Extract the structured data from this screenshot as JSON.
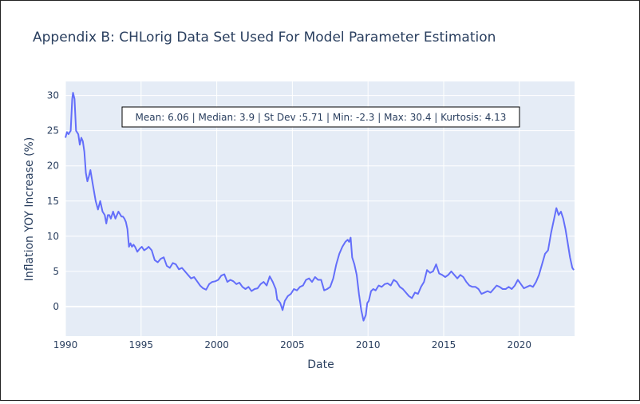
{
  "chart_data": {
    "type": "line",
    "title": "Appendix B: CHLorig Data Set Used For Model Parameter Estimation",
    "xlabel": "Date",
    "ylabel": "Inflation YOY Increase (%)",
    "xlim": [
      1990.0,
      2023.65
    ],
    "ylim": [
      -4.2,
      32.0
    ],
    "x_ticks": [
      1990,
      1995,
      2000,
      2005,
      2010,
      2015,
      2020
    ],
    "y_ticks": [
      0,
      5,
      10,
      15,
      20,
      25,
      30
    ],
    "grid": true,
    "line_color": "#636efa",
    "background_color": "#e5ecf6",
    "annotation": "Mean: 6.06 | Median: 3.9 | St Dev :5.71 | Min: -2.3 | Max: 30.4 | Kurtosis: 4.13",
    "series": [
      {
        "x": [
          1990.0,
          1990.1,
          1990.2,
          1990.35,
          1990.45,
          1990.5,
          1990.6,
          1990.7,
          1990.85,
          1990.95,
          1991.05,
          1991.15,
          1991.25,
          1991.35,
          1991.45,
          1991.55,
          1991.65,
          1991.8,
          1992.0,
          1992.15,
          1992.3,
          1992.45,
          1992.6,
          1992.7,
          1992.8,
          1992.9,
          1993.0,
          1993.15,
          1993.3,
          1993.5,
          1993.7,
          1993.8,
          1993.9,
          1994.0,
          1994.1,
          1994.2,
          1994.3,
          1994.4,
          1994.5,
          1994.6,
          1994.75,
          1994.9,
          1995.05,
          1995.2,
          1995.35,
          1995.5,
          1995.7,
          1995.9,
          1996.1,
          1996.3,
          1996.5,
          1996.7,
          1996.9,
          1997.1,
          1997.3,
          1997.5,
          1997.7,
          1997.9,
          1998.1,
          1998.3,
          1998.5,
          1998.7,
          1998.9,
          1999.1,
          1999.3,
          1999.5,
          1999.7,
          1999.9,
          2000.1,
          2000.3,
          2000.5,
          2000.7,
          2000.9,
          2001.1,
          2001.3,
          2001.5,
          2001.7,
          2001.9,
          2002.1,
          2002.3,
          2002.5,
          2002.7,
          2002.9,
          2003.1,
          2003.3,
          2003.5,
          2003.7,
          2003.9,
          2004.0,
          2004.1,
          2004.2,
          2004.35,
          2004.5,
          2004.7,
          2004.9,
          2005.1,
          2005.3,
          2005.5,
          2005.7,
          2005.9,
          2006.1,
          2006.3,
          2006.5,
          2006.7,
          2006.9,
          2007.1,
          2007.3,
          2007.5,
          2007.7,
          2007.9,
          2008.1,
          2008.3,
          2008.5,
          2008.65,
          2008.75,
          2008.85,
          2008.95,
          2009.1,
          2009.25,
          2009.4,
          2009.55,
          2009.7,
          2009.85,
          2009.95,
          2010.05,
          2010.2,
          2010.35,
          2010.5,
          2010.7,
          2010.9,
          2011.1,
          2011.3,
          2011.5,
          2011.7,
          2011.9,
          2012.1,
          2012.3,
          2012.5,
          2012.7,
          2012.9,
          2013.1,
          2013.3,
          2013.5,
          2013.7,
          2013.9,
          2014.1,
          2014.3,
          2014.5,
          2014.7,
          2014.9,
          2015.1,
          2015.3,
          2015.5,
          2015.7,
          2015.9,
          2016.1,
          2016.3,
          2016.5,
          2016.7,
          2016.9,
          2017.1,
          2017.3,
          2017.5,
          2017.7,
          2017.9,
          2018.1,
          2018.3,
          2018.5,
          2018.7,
          2018.9,
          2019.1,
          2019.3,
          2019.5,
          2019.7,
          2019.9,
          2020.1,
          2020.3,
          2020.5,
          2020.7,
          2020.9,
          2021.1,
          2021.3,
          2021.5,
          2021.7,
          2021.9,
          2022.1,
          2022.3,
          2022.45,
          2022.6,
          2022.75,
          2022.9,
          2023.05,
          2023.2,
          2023.35,
          2023.5,
          2023.6
        ],
        "y": [
          24.0,
          24.8,
          24.5,
          25.0,
          29.5,
          30.4,
          29.5,
          25.0,
          24.5,
          23.0,
          24.0,
          23.5,
          22.0,
          19.0,
          17.8,
          18.5,
          19.4,
          17.5,
          15.0,
          13.8,
          15.0,
          13.5,
          13.0,
          11.8,
          13.0,
          13.0,
          12.5,
          13.5,
          12.5,
          13.5,
          12.8,
          12.8,
          12.5,
          12.0,
          11.0,
          8.5,
          9.0,
          8.5,
          8.8,
          8.5,
          7.8,
          8.2,
          8.5,
          8.0,
          8.2,
          8.5,
          8.0,
          6.6,
          6.3,
          6.8,
          7.0,
          5.8,
          5.5,
          6.2,
          6.0,
          5.3,
          5.5,
          5.0,
          4.5,
          4.0,
          4.2,
          3.6,
          3.0,
          2.6,
          2.4,
          3.2,
          3.5,
          3.6,
          3.8,
          4.4,
          4.6,
          3.5,
          3.8,
          3.6,
          3.2,
          3.4,
          2.8,
          2.5,
          2.8,
          2.2,
          2.5,
          2.6,
          3.2,
          3.5,
          3.0,
          4.3,
          3.5,
          2.5,
          1.0,
          0.8,
          0.5,
          -0.5,
          0.8,
          1.5,
          1.8,
          2.5,
          2.3,
          2.8,
          3.0,
          3.8,
          4.0,
          3.5,
          4.2,
          3.8,
          3.8,
          2.3,
          2.5,
          2.8,
          4.0,
          6.0,
          7.5,
          8.5,
          9.2,
          9.5,
          9.2,
          9.8,
          7.0,
          6.0,
          4.5,
          1.8,
          -0.5,
          -2.0,
          -1.2,
          0.5,
          0.8,
          2.2,
          2.5,
          2.3,
          3.0,
          2.8,
          3.2,
          3.3,
          3.0,
          3.8,
          3.5,
          2.8,
          2.5,
          2.0,
          1.5,
          1.2,
          2.0,
          1.8,
          2.8,
          3.5,
          5.2,
          4.8,
          5.0,
          6.0,
          4.7,
          4.5,
          4.2,
          4.5,
          5.0,
          4.5,
          4.0,
          4.5,
          4.2,
          3.5,
          3.0,
          2.8,
          2.8,
          2.5,
          1.8,
          2.0,
          2.2,
          2.0,
          2.5,
          3.0,
          2.8,
          2.5,
          2.5,
          2.8,
          2.5,
          3.0,
          3.8,
          3.2,
          2.6,
          2.8,
          3.0,
          2.8,
          3.5,
          4.5,
          6.0,
          7.5,
          8.0,
          10.5,
          12.5,
          14.0,
          13.0,
          13.5,
          12.5,
          11.0,
          9.0,
          7.0,
          5.5,
          5.2
        ]
      }
    ]
  }
}
